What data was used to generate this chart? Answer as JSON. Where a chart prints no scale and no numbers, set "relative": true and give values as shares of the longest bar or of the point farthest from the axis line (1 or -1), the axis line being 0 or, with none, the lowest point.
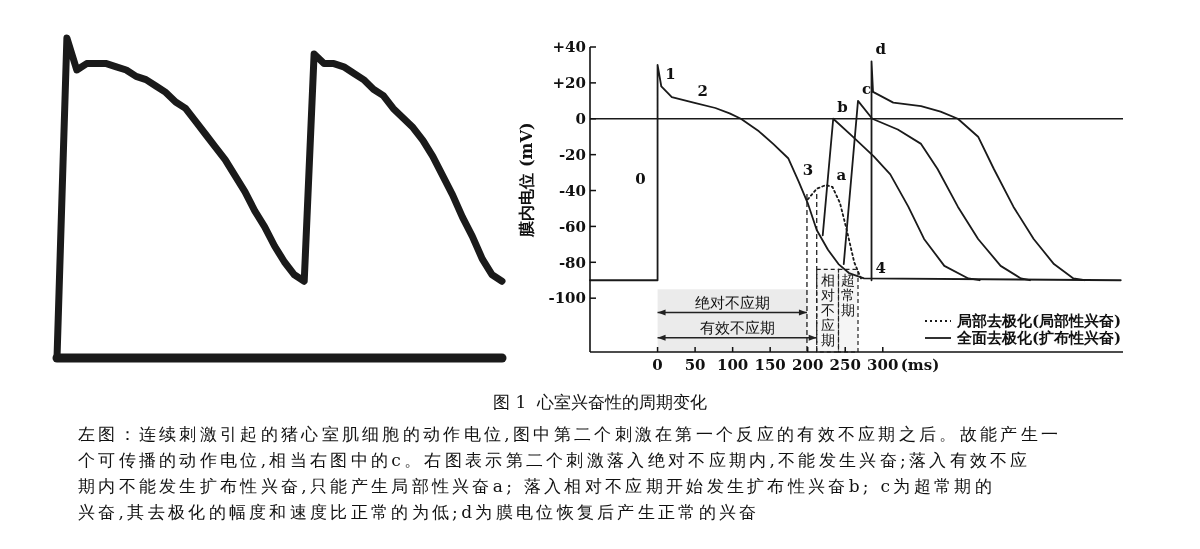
{
  "chart_data": [
    {
      "type": "line",
      "relative": true,
      "categories": [
        null,
        null,
        null,
        null,
        null,
        null,
        null,
        null,
        null,
        null,
        null,
        null,
        null,
        null,
        null,
        null,
        null,
        null,
        null,
        null,
        null,
        null,
        null,
        null,
        null,
        null,
        null,
        null,
        null,
        null,
        null,
        null,
        null,
        null,
        null,
        null,
        null,
        null,
        null,
        null,
        null,
        null,
        null,
        null,
        null,
        null
      ],
      "series": [
        {
          "color": "#1a1a1a",
          "values": [
            0,
            1,
            0.9,
            0.92,
            0.92,
            0.92,
            0.91,
            0.9,
            0.88,
            0.87,
            0.85,
            0.83,
            0.8,
            0.78,
            0.74,
            0.7,
            0.66,
            0.62,
            0.57,
            0.52,
            0.46,
            0.41,
            0.35,
            0.3,
            0.26,
            0.24,
            0.95,
            0.92,
            0.92,
            0.91,
            0.89,
            0.87,
            0.84,
            0.82,
            0.78,
            0.75,
            0.72,
            0.68,
            0.63,
            0.57,
            0.51,
            0.44,
            0.38,
            0.31,
            0.26,
            0.24
          ]
        }
      ]
    },
    {
      "type": "line",
      "title": "图 1  心室兴奋性的周期变化",
      "xlabel": "(ms)",
      "ylabel": "膜内电位 (mV)",
      "xlim": [
        -90,
        620
      ],
      "ylim": [
        -130,
        40
      ],
      "xticks": [
        0,
        50,
        100,
        150,
        200,
        250,
        300
      ],
      "yticks": [
        {
          "value": 40,
          "label": "+40"
        },
        {
          "value": 20,
          "label": "+20"
        },
        0,
        -20,
        -40,
        -60,
        -80,
        -100
      ],
      "legend": "bottom right",
      "series": [
        {
          "name": "局部去极化(局部性兴奋)",
          "color": "#1a1a1a",
          "line_style": "dotted",
          "x": [
            200,
            212,
            224,
            233,
            243,
            252,
            262,
            271
          ],
          "values": [
            -45,
            -39,
            -37,
            -38,
            -47,
            -62,
            -80,
            -89
          ]
        },
        {
          "name": "全面去极化(扩布性兴奋)",
          "color": "#1a1a1a",
          "line_style": "solid",
          "x": [
            -90,
            0,
            0,
            5,
            19,
            48,
            77,
            96,
            111,
            135,
            154,
            174,
            188,
            200,
            212,
            227,
            241,
            255,
            275,
            617
          ],
          "values": [
            -90,
            -90,
            30,
            18,
            12,
            9,
            6,
            3,
            0,
            -7,
            -14,
            -22,
            -35,
            -47,
            -62,
            -73,
            -81,
            -86,
            -89,
            -90
          ]
        },
        {
          "color": "#1a1a1a",
          "line_style": "solid",
          "x": [
            220,
            234,
            260,
            288,
            310,
            334,
            355,
            382,
            414,
            429
          ],
          "values": [
            -65,
            0,
            -10,
            -21,
            -31,
            -49,
            -67,
            -82,
            -89,
            -90
          ]
        },
        {
          "color": "#1a1a1a",
          "line_style": "solid",
          "x": [
            248,
            267,
            286,
            320,
            351,
            373,
            400,
            427,
            457,
            484,
            496
          ],
          "values": [
            -81,
            10,
            0,
            -6,
            -14,
            -28,
            -49,
            -67,
            -82,
            -89,
            -90
          ]
        },
        {
          "color": "#1a1a1a",
          "line_style": "solid",
          "x": [
            285,
            285,
            287,
            314,
            351,
            377,
            400,
            427,
            448,
            474,
            501,
            528,
            554,
            569
          ],
          "values": [
            -90,
            32,
            15,
            9,
            7,
            4,
            0,
            -10,
            -28,
            -49,
            -67,
            -81,
            -89,
            -90
          ]
        }
      ],
      "ref_lines": [
        {
          "axis": "y",
          "value": 0,
          "color": "#1a1a1a"
        }
      ],
      "bands": [
        {
          "axis": "x",
          "from": 0,
          "to": 199,
          "label": "绝对不应期"
        },
        {
          "axis": "x",
          "from": 0,
          "to": 212,
          "label": "有效不应期"
        },
        {
          "axis": "x",
          "from": 212,
          "to": 241,
          "label": "相对不应期"
        },
        {
          "axis": "x",
          "from": 241,
          "to": 267,
          "label": "超常期"
        }
      ],
      "annotations": [
        {
          "text": "0",
          "x": 0,
          "y": -40
        },
        {
          "text": "1",
          "x": 5,
          "y": 18
        },
        {
          "text": "2",
          "x": 48,
          "y": 9
        },
        {
          "text": "3",
          "x": 188,
          "y": -35
        },
        {
          "text": "4",
          "x": 285,
          "y": -90
        },
        {
          "text": "a",
          "x": 233,
          "y": -38
        },
        {
          "text": "b",
          "x": 234,
          "y": 0
        },
        {
          "text": "c",
          "x": 267,
          "y": 10
        },
        {
          "text": "d",
          "x": 285,
          "y": 32
        },
        "左图：连续刺激引起的猪心室肌细胞的动作电位,图中第二个刺激在第一个反应的有效不应期之后。故能产生一个可传播的动作电位,相当右图中的c。右图表示第二个刺激落入绝对不应期内,不能发生兴奋;落入有效不应期内不能发生扩布性兴奋,只能产生局部性兴奋a; 落入相对不应期开始发生扩布性兴奋b; c为超常期的兴奋,其去极化的幅度和速度比正常的为低;d为膜电位恢复后产生正常的兴奋"
      ]
    }
  ]
}
